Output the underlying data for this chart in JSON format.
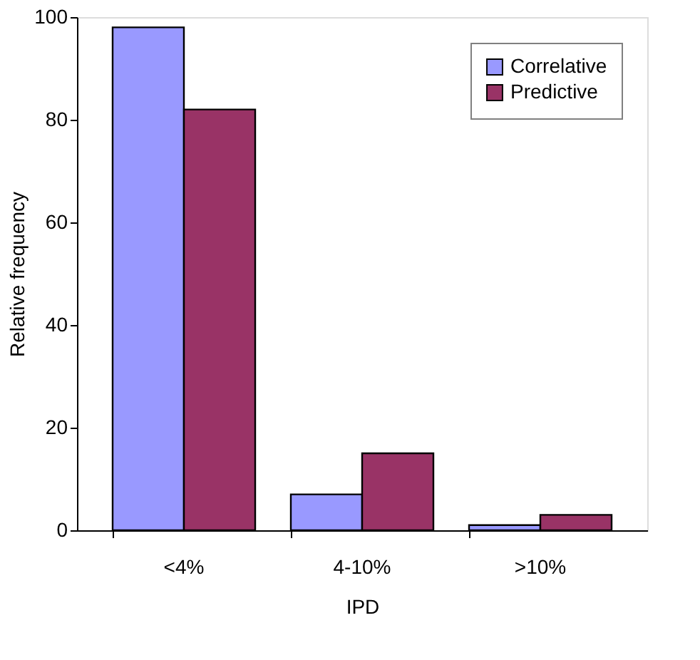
{
  "chart_data": {
    "type": "bar",
    "xlabel": "IPD",
    "ylabel": "Relative frequency",
    "categories": [
      "<4%",
      "4-10%",
      ">10%"
    ],
    "series": [
      {
        "name": "Correlative",
        "color": "#9999ff",
        "values": [
          98,
          7,
          1
        ]
      },
      {
        "name": "Predictive",
        "color": "#993366",
        "values": [
          82,
          15,
          3
        ]
      }
    ],
    "ylim": [
      0,
      100
    ],
    "yticks": [
      0,
      20,
      40,
      60,
      80,
      100
    ],
    "grid": false,
    "legend": "top right"
  }
}
